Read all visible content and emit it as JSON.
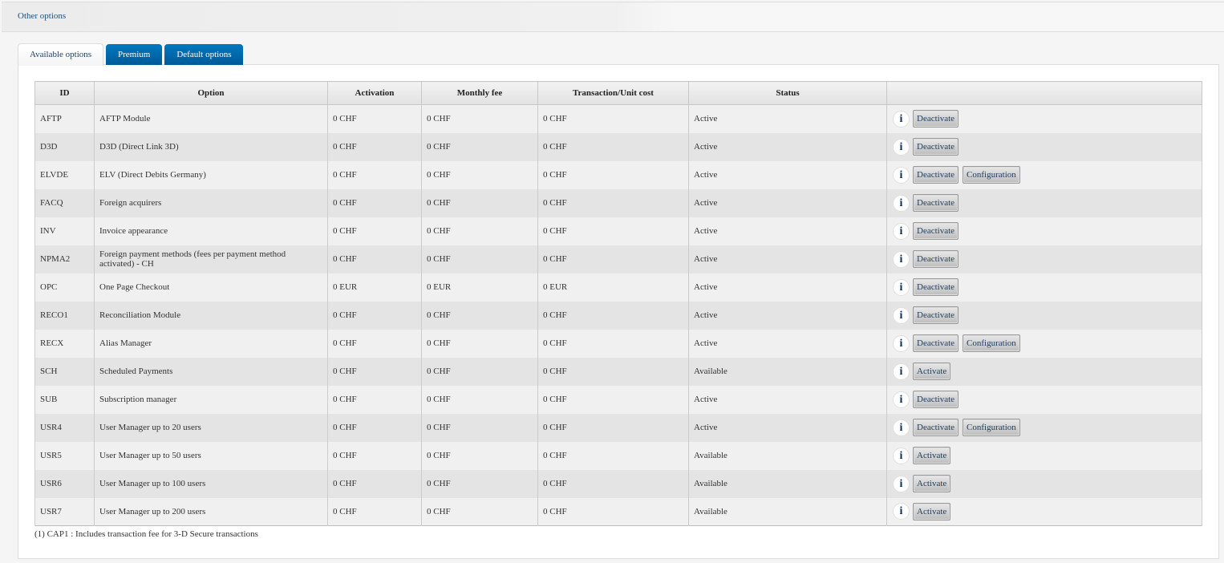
{
  "header": {
    "title": "Other options"
  },
  "tabs": [
    {
      "label": "Available options",
      "active": true
    },
    {
      "label": "Premium",
      "active": false
    },
    {
      "label": "Default options",
      "active": false
    }
  ],
  "table": {
    "columns": [
      "ID",
      "Option",
      "Activation",
      "Monthly fee",
      "Transaction/Unit cost",
      "Status",
      ""
    ],
    "rows": [
      {
        "id": "AFTP",
        "option": "AFTP Module",
        "activation": "0 CHF",
        "monthly": "0 CHF",
        "unit": "0 CHF",
        "status": "Active",
        "actions": [
          "Deactivate"
        ]
      },
      {
        "id": "D3D",
        "option": "D3D (Direct Link 3D)",
        "activation": "0 CHF",
        "monthly": "0 CHF",
        "unit": "0 CHF",
        "status": "Active",
        "actions": [
          "Deactivate"
        ]
      },
      {
        "id": "ELVDE",
        "option": "ELV (Direct Debits Germany)",
        "activation": "0 CHF",
        "monthly": "0 CHF",
        "unit": "0 CHF",
        "status": "Active",
        "actions": [
          "Deactivate",
          "Configuration"
        ]
      },
      {
        "id": "FACQ",
        "option": "Foreign acquirers",
        "activation": "0 CHF",
        "monthly": "0 CHF",
        "unit": "0 CHF",
        "status": "Active",
        "actions": [
          "Deactivate"
        ]
      },
      {
        "id": "INV",
        "option": "Invoice appearance",
        "activation": "0 CHF",
        "monthly": "0 CHF",
        "unit": "0 CHF",
        "status": "Active",
        "actions": [
          "Deactivate"
        ]
      },
      {
        "id": "NPMA2",
        "option": "Foreign payment methods (fees per payment method activated) - CH",
        "activation": "0 CHF",
        "monthly": "0 CHF",
        "unit": "0 CHF",
        "status": "Active",
        "actions": [
          "Deactivate"
        ]
      },
      {
        "id": "OPC",
        "option": "One Page Checkout",
        "activation": "0 EUR",
        "monthly": "0 EUR",
        "unit": "0 EUR",
        "status": "Active",
        "actions": [
          "Deactivate"
        ]
      },
      {
        "id": "RECO1",
        "option": "Reconciliation Module",
        "activation": "0 CHF",
        "monthly": "0 CHF",
        "unit": "0 CHF",
        "status": "Active",
        "actions": [
          "Deactivate"
        ]
      },
      {
        "id": "RECX",
        "option": "Alias Manager",
        "activation": "0 CHF",
        "monthly": "0 CHF",
        "unit": "0 CHF",
        "status": "Active",
        "actions": [
          "Deactivate",
          "Configuration"
        ]
      },
      {
        "id": "SCH",
        "option": "Scheduled Payments",
        "activation": "0 CHF",
        "monthly": "0 CHF",
        "unit": "0 CHF",
        "status": "Available",
        "actions": [
          "Activate"
        ]
      },
      {
        "id": "SUB",
        "option": "Subscription manager",
        "activation": "0 CHF",
        "monthly": "0 CHF",
        "unit": "0 CHF",
        "status": "Active",
        "actions": [
          "Deactivate"
        ]
      },
      {
        "id": "USR4",
        "option": "User Manager up to 20 users",
        "activation": "0 CHF",
        "monthly": "0 CHF",
        "unit": "0 CHF",
        "status": "Active",
        "actions": [
          "Deactivate",
          "Configuration"
        ]
      },
      {
        "id": "USR5",
        "option": "User Manager up to 50 users",
        "activation": "0 CHF",
        "monthly": "0 CHF",
        "unit": "0 CHF",
        "status": "Available",
        "actions": [
          "Activate"
        ]
      },
      {
        "id": "USR6",
        "option": "User Manager up to 100 users",
        "activation": "0 CHF",
        "monthly": "0 CHF",
        "unit": "0 CHF",
        "status": "Available",
        "actions": [
          "Activate"
        ]
      },
      {
        "id": "USR7",
        "option": "User Manager up to 200 users",
        "activation": "0 CHF",
        "monthly": "0 CHF",
        "unit": "0 CHF",
        "status": "Available",
        "actions": [
          "Activate"
        ]
      }
    ]
  },
  "info_icon": "info-icon",
  "footnote": "(1) CAP1 : Includes transaction fee for 3-D Secure transactions",
  "colors": {
    "tab_blue": "#0068ad",
    "link": "#1f4e79"
  }
}
